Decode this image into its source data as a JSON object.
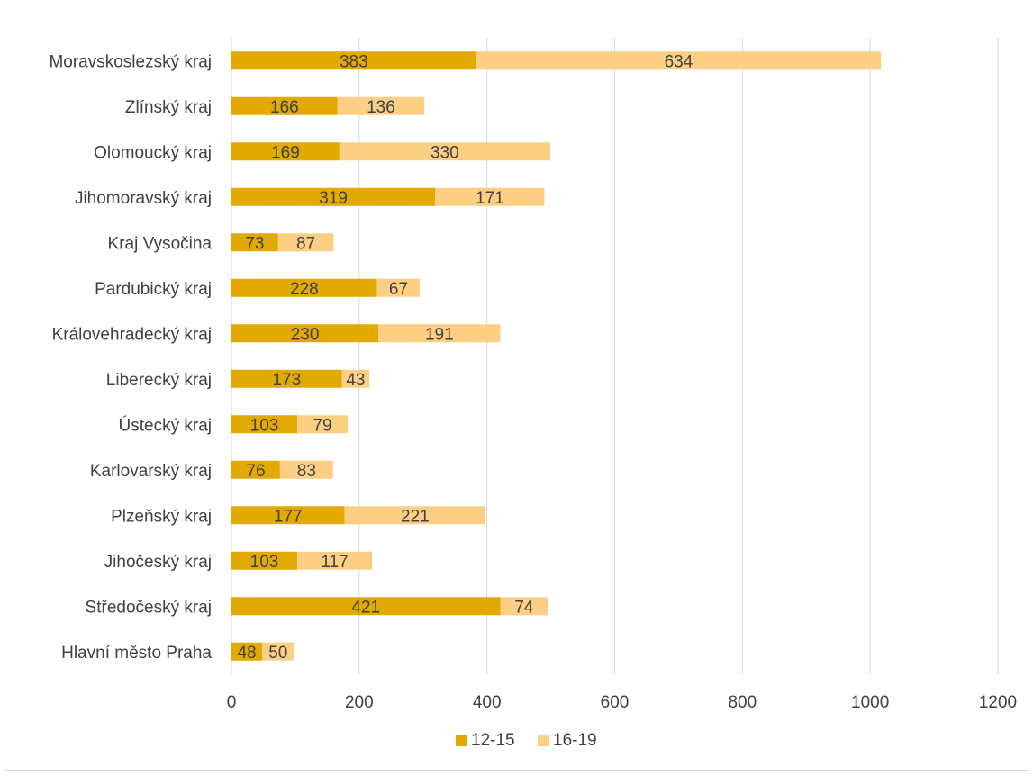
{
  "chart_data": {
    "type": "bar",
    "orientation": "horizontal",
    "stacked": true,
    "categories": [
      "Moravskoslezský kraj",
      "Zlínský kraj",
      "Olomoucký kraj",
      "Jihomoravský kraj",
      "Kraj Vysočina",
      "Pardubický kraj",
      "Královehradecký kraj",
      "Liberecký kraj",
      "Ústecký kraj",
      "Karlovarský kraj",
      "Plzeňský kraj",
      "Jihočeský kraj",
      "Středočeský kraj",
      "Hlavní město Praha"
    ],
    "series": [
      {
        "name": "12-15",
        "color": "#e2a900",
        "values": [
          383,
          166,
          169,
          319,
          73,
          228,
          230,
          173,
          103,
          76,
          177,
          103,
          421,
          48
        ]
      },
      {
        "name": "16-19",
        "color": "#fdcf84",
        "values": [
          634,
          136,
          330,
          171,
          87,
          67,
          191,
          43,
          79,
          83,
          221,
          117,
          74,
          50
        ]
      }
    ],
    "xlim": [
      0,
      1200
    ],
    "xticks": [
      "0",
      "200",
      "400",
      "600",
      "800",
      "1000",
      "1200"
    ],
    "grid": "vertical",
    "legend": "bottom",
    "data_labels": true
  }
}
